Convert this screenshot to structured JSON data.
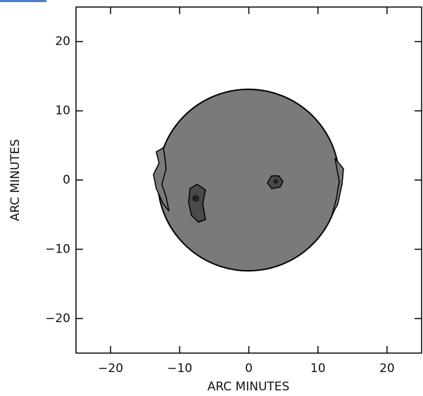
{
  "chart_data": {
    "type": "image",
    "xlabel": "ARC MINUTES",
    "ylabel": "ARC MINUTES",
    "xlim": [
      -25,
      25
    ],
    "ylim": [
      -25,
      25
    ],
    "xticks": [
      {
        "value": -20,
        "label": "−20"
      },
      {
        "value": -10,
        "label": "−10"
      },
      0,
      10,
      20
    ],
    "yticks": [
      {
        "value": -20,
        "label": "−20"
      },
      {
        "value": -10,
        "label": "−10"
      },
      0,
      10,
      20
    ]
  }
}
